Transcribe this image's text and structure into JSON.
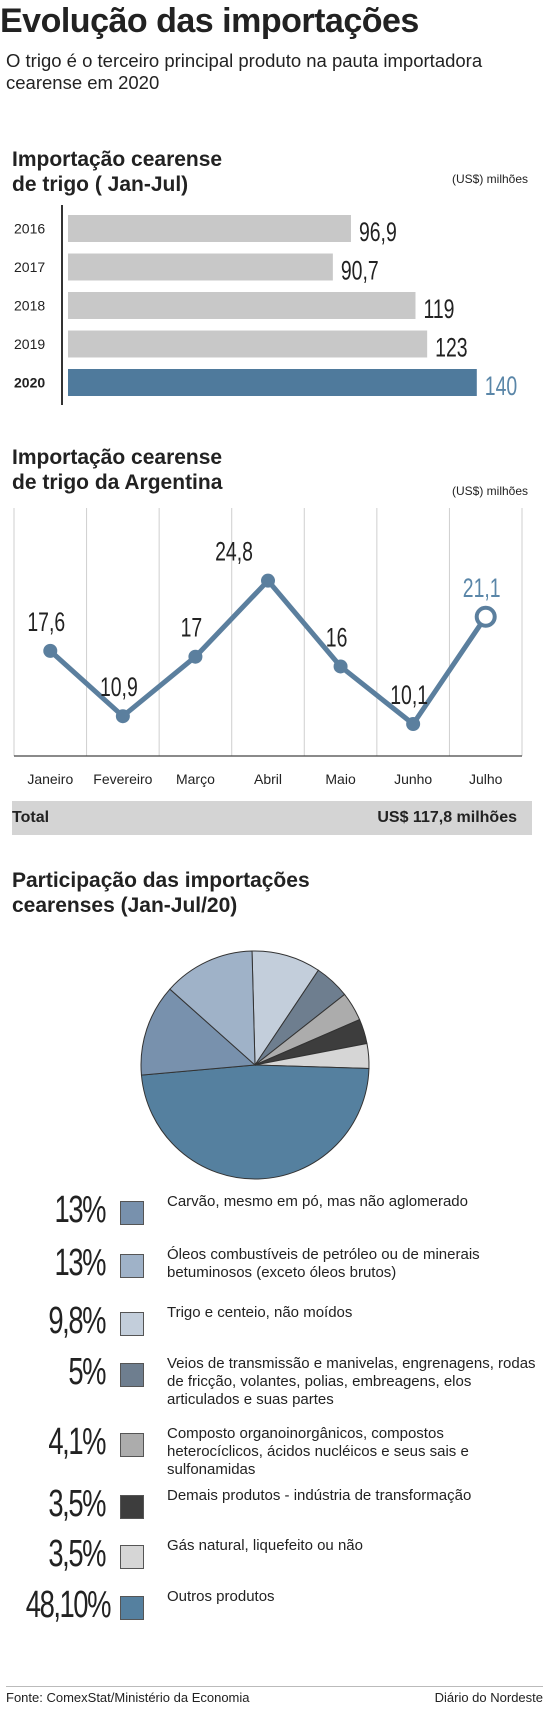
{
  "header": {
    "title": "Evolução das importações",
    "subtitle": "O trigo é o terceiro principal produto na pauta importadora cearense em 2020"
  },
  "bar_section": {
    "title_line1": "Importação cearense",
    "title_line2": "de trigo ( Jan-Jul)",
    "unit": "(US$) milhões"
  },
  "line_section": {
    "title_line1": "Importação cearense",
    "title_line2": "de trigo da Argentina",
    "unit": "(US$) milhões"
  },
  "total": {
    "label": "Total",
    "value": "US$ 117,8 milhões"
  },
  "pie_section": {
    "title_line1": "Participação das importações",
    "title_line2": "cearenses (Jan-Jul/20)"
  },
  "footer": {
    "source": "Fonte:  ComexStat/Ministério da Economia",
    "brand": "Diário do Nordeste"
  },
  "colors": {
    "bar_gray": "#c8c8c8",
    "bar_highlight": "#4f7a9c",
    "line": "#5b7f9e",
    "highlight_text": "#5a86a8"
  },
  "chart_data": [
    {
      "type": "bar",
      "orientation": "horizontal",
      "categories": [
        "2016",
        "2017",
        "2018",
        "2019",
        "2020"
      ],
      "values": [
        96.9,
        90.7,
        119,
        123,
        140
      ],
      "value_labels": [
        "96,9",
        "90,7",
        "119",
        "123",
        "140"
      ],
      "highlight": "2020",
      "title": "Importação cearense de trigo ( Jan-Jul)",
      "unit": "(US$) milhões"
    },
    {
      "type": "line",
      "categories": [
        "Janeiro",
        "Fevereiro",
        "Março",
        "Abril",
        "Maio",
        "Junho",
        "Julho"
      ],
      "values": [
        17.6,
        10.9,
        17,
        24.8,
        16,
        10.1,
        21.1
      ],
      "value_labels": [
        "17,6",
        "10,9",
        "17",
        "24,8",
        "16",
        "10,1",
        "21,1"
      ],
      "highlight": "Julho",
      "title": "Importação cearense de trigo da Argentina",
      "unit": "(US$) milhões",
      "grid": "vertical"
    },
    {
      "type": "pie",
      "title": "Participação das importações cearenses (Jan-Jul/20)",
      "slices": [
        {
          "label": "Carvão, mesmo em pó, mas não aglomerado",
          "pct_label": "13%",
          "value": 13,
          "color": "#7891ad"
        },
        {
          "label": "Óleos combustíveis de petróleo ou de minerais betuminosos (exceto óleos brutos)",
          "pct_label": "13%",
          "value": 13,
          "color": "#9fb2c8"
        },
        {
          "label": "Trigo e centeio, não moídos",
          "pct_label": "9,8%",
          "value": 9.8,
          "color": "#c3cedb"
        },
        {
          "label": "Veios de transmissão e manivelas, engrenagens, rodas de fricção, volantes, polias, embreagens, elos articulados e suas partes",
          "pct_label": "5%",
          "value": 5,
          "color": "#6e7e8f"
        },
        {
          "label": "Composto organoinorgânicos, compostos heterocíclicos, ácidos nucléicos e seus sais e sulfonamidas",
          "pct_label": "4,1%",
          "value": 4.1,
          "color": "#acacac"
        },
        {
          "label": "Demais produtos - indústria de transformação",
          "pct_label": "3,5%",
          "value": 3.5,
          "color": "#3d3d3d"
        },
        {
          "label": "Gás natural, liquefeito ou não",
          "pct_label": "3,5%",
          "value": 3.5,
          "color": "#d6d6d6"
        },
        {
          "label": "Outros produtos",
          "pct_label": "48,10%",
          "value": 48.1,
          "color": "#55809f"
        }
      ]
    }
  ]
}
